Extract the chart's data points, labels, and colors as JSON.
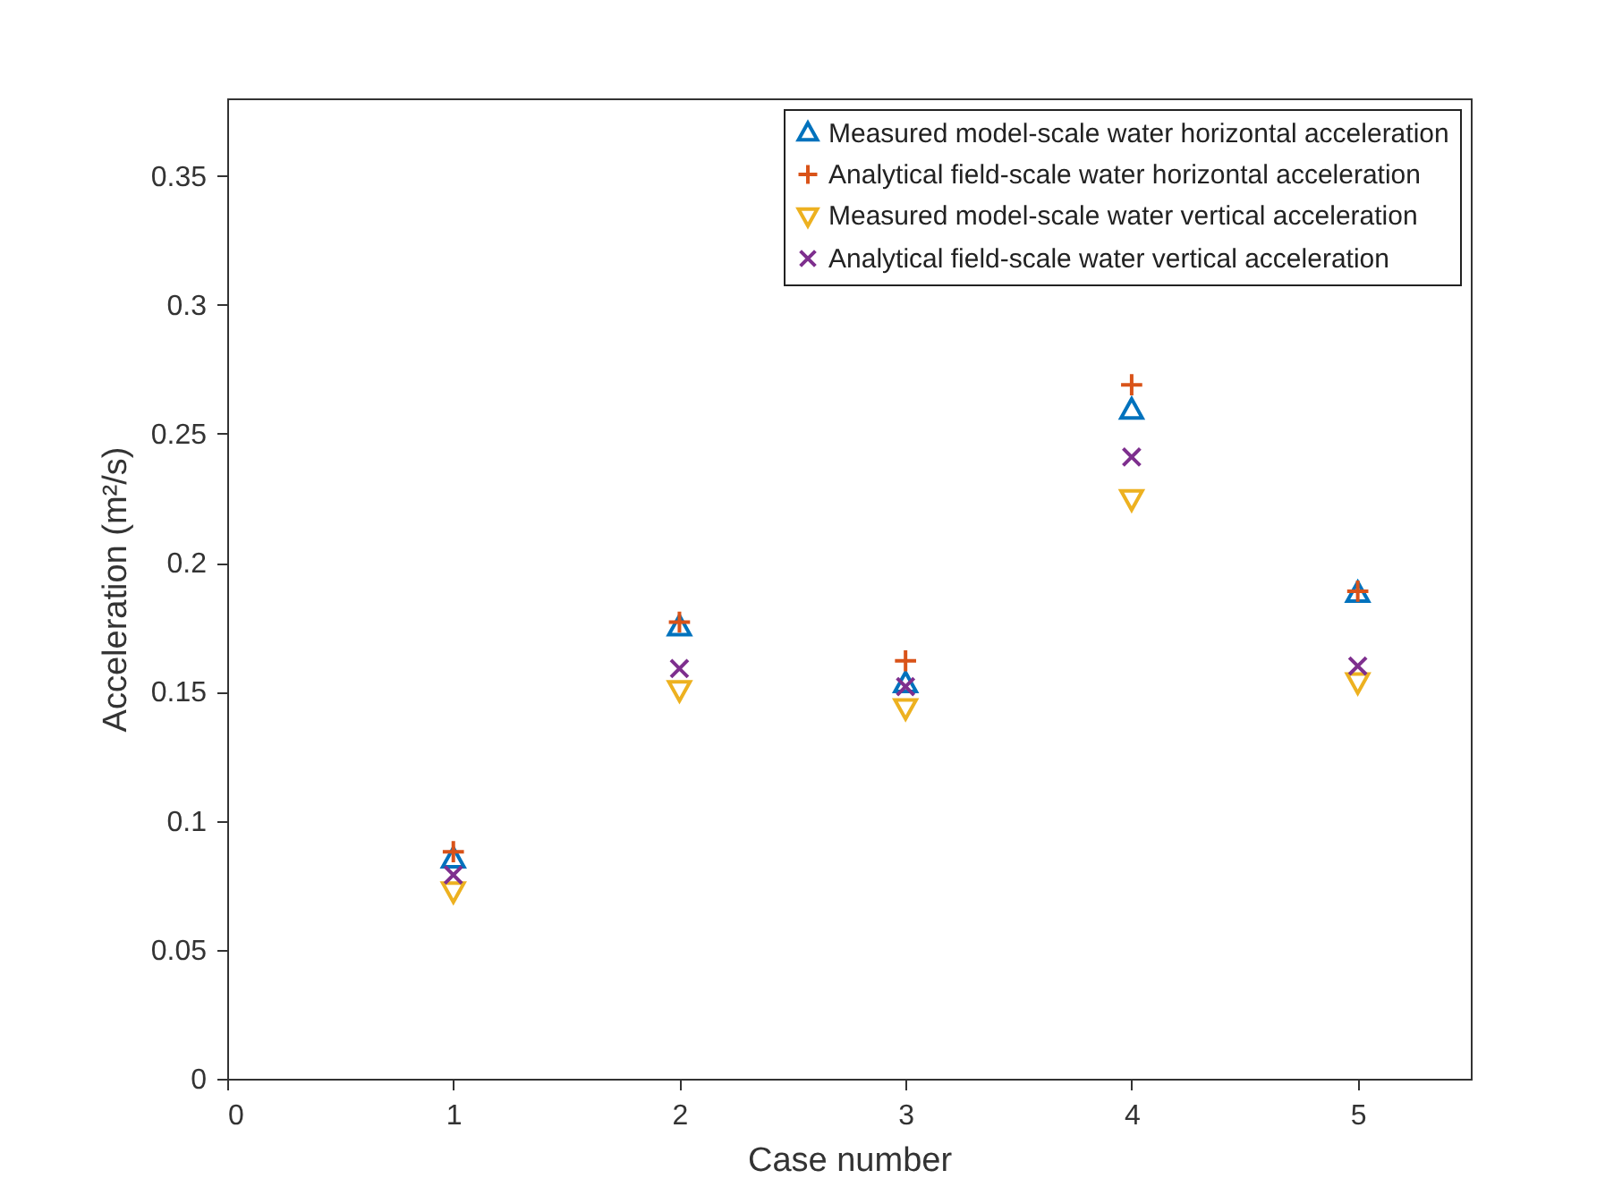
{
  "chart_data": {
    "type": "scatter",
    "xlabel": "Case number",
    "ylabel": "Acceleration (m²/s)",
    "x": [
      1,
      2,
      3,
      4,
      5
    ],
    "series": [
      {
        "name": "Measured model-scale water horizontal acceleration",
        "color": "#0072bd",
        "marker": "triangle",
        "values": [
          0.085,
          0.175,
          0.153,
          0.259,
          0.188
        ]
      },
      {
        "name": "Analytical field-scale water horizontal acceleration",
        "color": "#d95319",
        "marker": "plus",
        "values": [
          0.088,
          0.177,
          0.162,
          0.269,
          0.189
        ]
      },
      {
        "name": "Measured model-scale water vertical acceleration",
        "color": "#edb120",
        "marker": "triangle-down",
        "values": [
          0.073,
          0.151,
          0.144,
          0.225,
          0.154
        ]
      },
      {
        "name": "Analytical field-scale water vertical acceleration",
        "color": "#7e2f8e",
        "marker": "cross",
        "values": [
          0.079,
          0.159,
          0.152,
          0.241,
          0.16
        ]
      }
    ],
    "xlim": [
      0,
      5.5
    ],
    "xticks": [
      0,
      1,
      2,
      3,
      4,
      5
    ],
    "ylim": [
      0,
      0.38
    ],
    "yticks": [
      0,
      0.05,
      0.1,
      0.15,
      0.2,
      0.25,
      0.3,
      0.35
    ],
    "grid": false,
    "legend": "top right"
  }
}
